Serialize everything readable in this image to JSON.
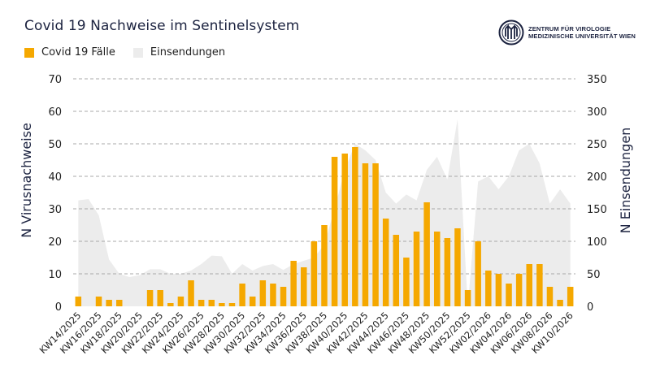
{
  "header": {
    "title": "Covid 19 Nachweise im Sentinelsystem",
    "logo_line1": "ZENTRUM FÜR VIROLOGIE",
    "logo_line2": "MEDIZINISCHE UNIVERSITÄT WIEN"
  },
  "colors": {
    "bar": "#f5a800",
    "area": "#ececec",
    "grid": "#a8a8a8",
    "text": "#1c2340"
  },
  "chart_data": {
    "type": "bar",
    "title": "Covid 19 Nachweise im Sentinelsystem",
    "legend": [
      "Covid 19 Fälle",
      "Einsendungen"
    ],
    "legend_position": "top-left",
    "ylabel": "N Virusnachweise",
    "y2label": "N Einsendungen",
    "ylim": [
      0,
      70
    ],
    "y2lim": [
      0,
      350
    ],
    "yticks": [
      0,
      10,
      20,
      30,
      40,
      50,
      60,
      70
    ],
    "y2ticks": [
      0,
      50,
      100,
      150,
      200,
      250,
      300,
      350
    ],
    "grid": true,
    "x_labels_shown": [
      "KW14/2025",
      "KW16/2025",
      "KW18/2025",
      "KW20/2025",
      "KW22/2025",
      "KW24/2025",
      "KW26/2025",
      "KW28/2025",
      "KW30/2025",
      "KW32/2025",
      "KW34/2025",
      "KW36/2025",
      "KW38/2025",
      "KW40/2025",
      "KW42/2025",
      "KW44/2025",
      "KW46/2025",
      "KW48/2025",
      "KW50/2025",
      "KW52/2025",
      "KW02/2026",
      "KW04/2026",
      "KW06/2026",
      "KW08/2026",
      "KW10/2026"
    ],
    "series": [
      {
        "name": "Covid 19 Fälle",
        "kind": "bar",
        "axis": "left",
        "values": [
          3,
          0,
          3,
          2,
          2,
          0,
          0,
          5,
          5,
          1,
          3,
          8,
          2,
          2,
          1,
          1,
          7,
          3,
          8,
          7,
          6,
          14,
          12,
          20,
          25,
          46,
          47,
          49,
          44,
          44,
          27,
          22,
          15,
          23,
          32,
          23,
          21,
          24,
          5,
          20,
          11,
          10,
          7,
          10,
          13,
          13,
          6,
          2,
          6
        ]
      },
      {
        "name": "Einsendungen",
        "kind": "area",
        "axis": "right",
        "values": [
          163,
          165,
          140,
          72,
          50,
          45,
          48,
          57,
          57,
          50,
          50,
          55,
          65,
          78,
          77,
          50,
          65,
          55,
          62,
          65,
          56,
          65,
          70,
          75,
          95,
          150,
          210,
          250,
          240,
          225,
          175,
          158,
          172,
          163,
          210,
          230,
          195,
          288,
          0,
          192,
          200,
          180,
          200,
          240,
          250,
          220,
          158,
          180,
          158
        ]
      }
    ]
  }
}
